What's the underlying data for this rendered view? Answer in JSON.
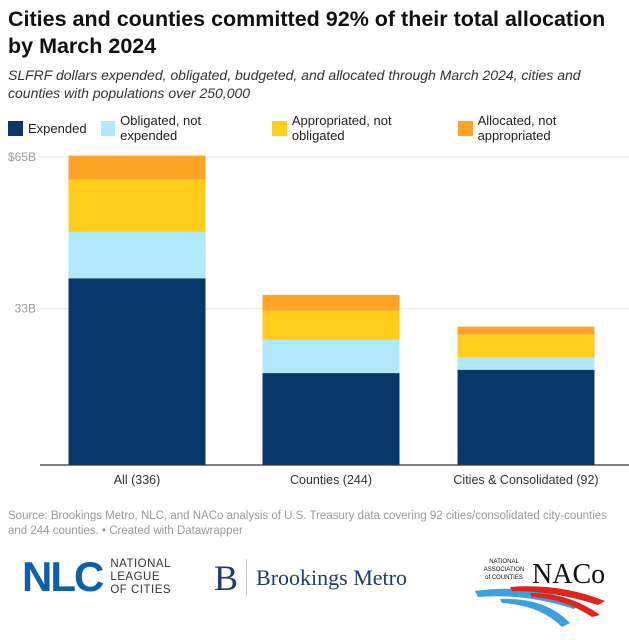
{
  "title": "Cities and counties committed 92% of their total allocation by March 2024",
  "subtitle": "SLFRF dollars expended, obligated, budgeted, and allocated through March 2024, cities and counties with populations over 250,000",
  "source": "Source: Brookings Metro, NLC, and NACo analysis of U.S. Treasury data covering 92 cities/consolidated city-counties and 244 counties.  • Created with Datawrapper",
  "logos": {
    "nlc": {
      "mark": "NLC",
      "text": [
        "NATIONAL",
        "LEAGUE",
        "OF CITIES"
      ]
    },
    "brookings": {
      "mark": "B",
      "text": "Brookings Metro"
    },
    "naco": {
      "mark": "NACo",
      "text": "NATIONAL ASSOCIATION of COUNTIES"
    }
  },
  "chart_data": {
    "type": "bar",
    "stacked": true,
    "title": "Cities and counties committed 92% of their total allocation by March 2024",
    "categories": [
      "All (336)",
      "Counties (244)",
      "Cities & Consolidated (92)"
    ],
    "series": [
      {
        "name": "Expended",
        "color": "#08376b",
        "values": [
          39.4,
          19.4,
          20.1
        ]
      },
      {
        "name": "Obligated, not expended",
        "color": "#b0e9fc",
        "values": [
          9.8,
          7.0,
          2.6
        ]
      },
      {
        "name": "Appropriated, not obligated",
        "color": "#ffcd1a",
        "values": [
          11.0,
          6.2,
          4.8
        ]
      },
      {
        "name": "Allocated, not appropriated",
        "color": "#ffa326",
        "values": [
          5.1,
          3.3,
          1.7
        ]
      }
    ],
    "yticks": [
      {
        "value": 33,
        "label": "33B"
      },
      {
        "value": 65,
        "label": "$65B"
      }
    ],
    "ylim": [
      0,
      65
    ],
    "grid": true,
    "legend": "top"
  }
}
